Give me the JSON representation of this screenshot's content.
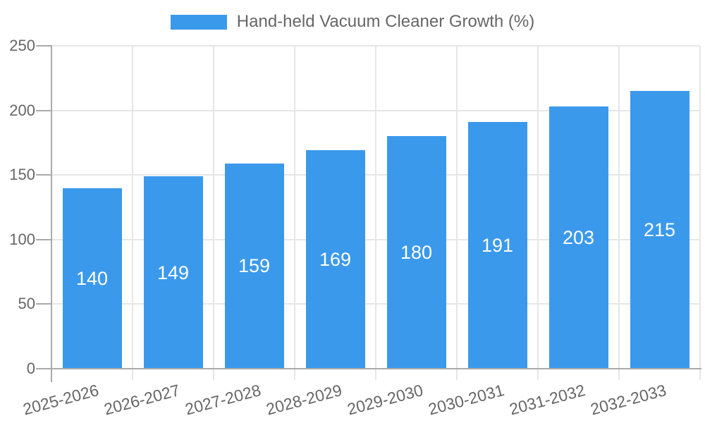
{
  "legend": {
    "label": "Hand-held Vacuum Cleaner Growth (%)"
  },
  "colors": {
    "bar": "#3b99ec",
    "grid": "#e6e6e6",
    "axis": "#aaaaaa",
    "tick_text": "#666666",
    "bar_label": "#ffffff"
  },
  "chart_data": {
    "type": "bar",
    "title": "Hand-held Vacuum Cleaner Growth (%)",
    "categories": [
      "2025-2026",
      "2026-2027",
      "2027-2028",
      "2028-2029",
      "2029-2030",
      "2030-2031",
      "2031-2032",
      "2032-2033"
    ],
    "values": [
      140,
      149,
      159,
      169,
      180,
      191,
      203,
      215
    ],
    "series": [
      {
        "name": "Hand-held Vacuum Cleaner Growth (%)",
        "values": [
          140,
          149,
          159,
          169,
          180,
          191,
          203,
          215
        ]
      }
    ],
    "xlabel": "",
    "ylabel": "",
    "ylim": [
      0,
      250
    ],
    "yticks": [
      0,
      50,
      100,
      150,
      200,
      250
    ],
    "grid": true,
    "legend_position": "top-center",
    "bar_labels_position": "center-inside",
    "x_label_rotation_deg": -15
  }
}
